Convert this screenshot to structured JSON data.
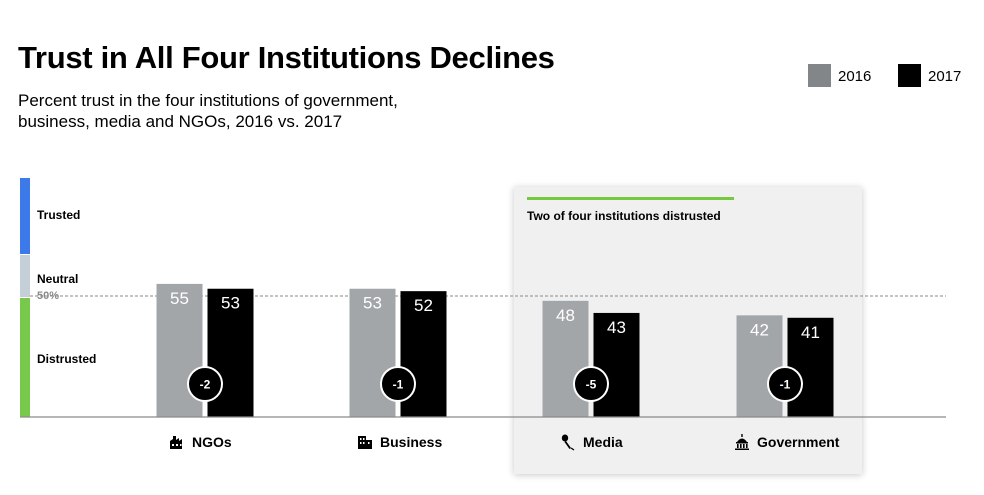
{
  "header": {
    "title": "Trust in All Four Institutions Declines",
    "subtitle": "Percent trust in the four institutions of government, business, media and NGOs, 2016 vs. 2017"
  },
  "legend": [
    {
      "label": "2016",
      "color": "#838689"
    },
    {
      "label": "2017",
      "color": "#000000"
    }
  ],
  "bands": [
    {
      "label": "Trusted",
      "color": "#3b7ae8"
    },
    {
      "label": "Neutral",
      "color": "#c4cfd8"
    },
    {
      "label": "Distrusted",
      "color": "#78c84b"
    }
  ],
  "reference_line": {
    "label": "50%",
    "value": 50
  },
  "panel": {
    "title": "Two of four institutions distrusted"
  },
  "chart_data": {
    "type": "bar",
    "categories": [
      "NGOs",
      "Business",
      "Media",
      "Government"
    ],
    "category_icons": [
      "ngo-icon",
      "business-icon",
      "media-icon",
      "government-icon"
    ],
    "series": [
      {
        "name": "2016",
        "values": [
          55,
          53,
          48,
          42
        ],
        "color": "#a3a6a9"
      },
      {
        "name": "2017",
        "values": [
          53,
          52,
          43,
          41
        ],
        "color": "#000000"
      }
    ],
    "changes": [
      "-2",
      "-1",
      "-5",
      "-1"
    ],
    "ylim": [
      0,
      100
    ],
    "grid": false,
    "legend_position": "top-right"
  }
}
